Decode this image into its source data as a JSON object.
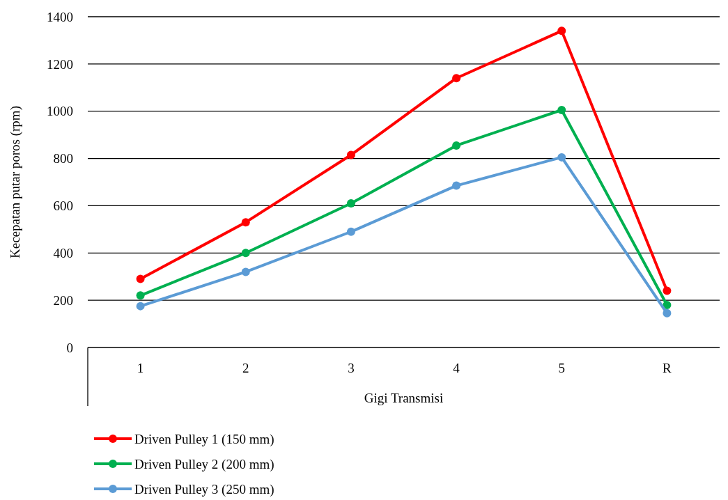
{
  "chart_data": {
    "type": "line",
    "xlabel": "Gigi Transmisi",
    "ylabel": "Kecepatan putar poros (rpm)",
    "categories": [
      "1",
      "2",
      "3",
      "4",
      "5",
      "R"
    ],
    "series": [
      {
        "name": "Driven Pulley 1 (150 mm)",
        "color": "#ff0000",
        "values": [
          290,
          530,
          815,
          1140,
          1340,
          240
        ]
      },
      {
        "name": "Driven Pulley 2 (200 mm)",
        "color": "#00b050",
        "values": [
          220,
          400,
          610,
          855,
          1005,
          180
        ]
      },
      {
        "name": "Driven Pulley 3 (250 mm)",
        "color": "#5b9bd5",
        "values": [
          175,
          320,
          490,
          685,
          805,
          145
        ]
      }
    ],
    "ylim": [
      0,
      1400
    ],
    "yticks": [
      0,
      200,
      400,
      600,
      800,
      1000,
      1200,
      1400
    ],
    "grid": "y",
    "legend": "bottom",
    "marker": "circle",
    "line_style": "solid"
  }
}
